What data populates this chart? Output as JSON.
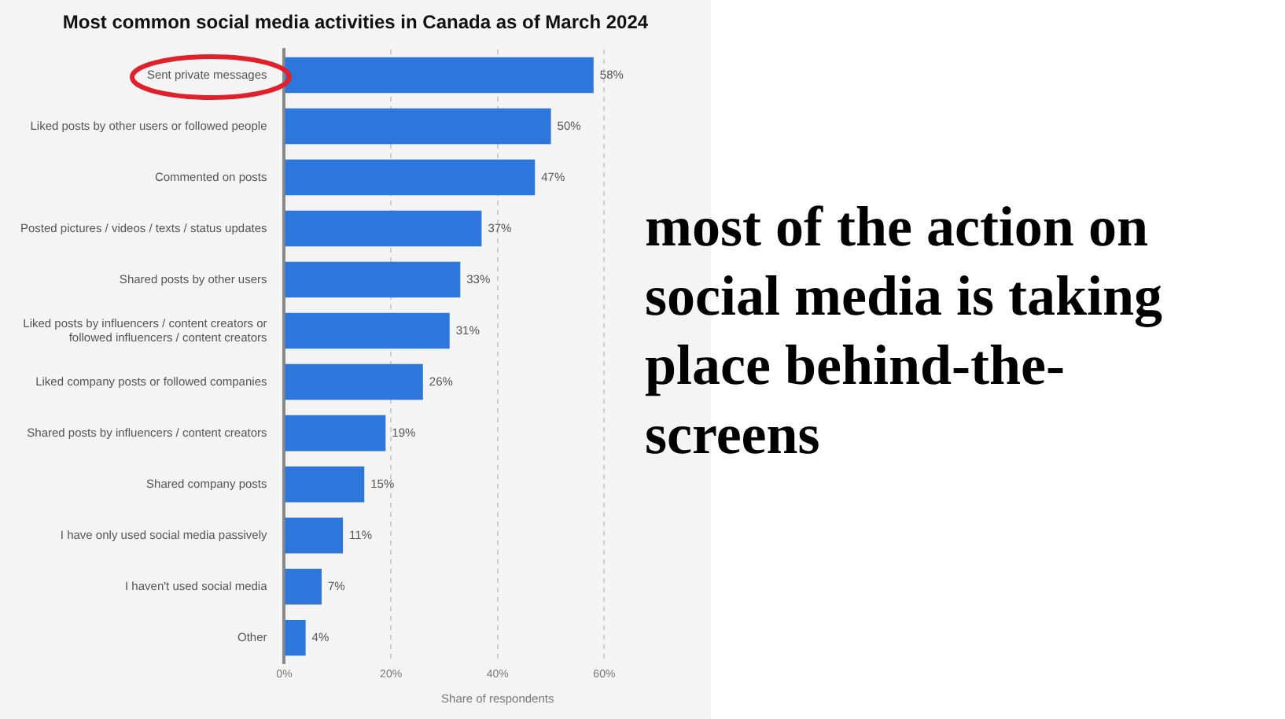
{
  "chart_data": {
    "type": "bar",
    "orientation": "horizontal",
    "title": "Most common social media activities in Canada as of March 2024",
    "xlabel": "Share of respondents",
    "categories": [
      "Sent private messages",
      "Liked posts by other users or followed people",
      "Commented on posts",
      "Posted pictures / videos / texts / status updates",
      "Shared posts by other users",
      "Liked posts by influencers / content creators or followed influencers / content creators",
      "Liked company posts or followed companies",
      "Shared posts by influencers / content creators",
      "Shared company posts",
      "I have only used social media passively",
      "I haven't used social media",
      "Other"
    ],
    "values": [
      58,
      50,
      47,
      37,
      33,
      31,
      26,
      19,
      15,
      11,
      7,
      4
    ],
    "value_labels": [
      "58%",
      "50%",
      "47%",
      "37%",
      "33%",
      "31%",
      "26%",
      "19%",
      "15%",
      "11%",
      "7%",
      "4%"
    ],
    "color": "#2c76dc",
    "xlim": [
      0,
      80
    ],
    "xticks": [
      {
        "value": 0,
        "label": "0%"
      },
      {
        "value": 20,
        "label": "20%"
      },
      {
        "value": 40,
        "label": "40%"
      },
      {
        "value": 60,
        "label": "60%"
      }
    ],
    "grid": "x",
    "annotations": [
      "most of the action on social media is taking place behind-the-screens"
    ]
  }
}
